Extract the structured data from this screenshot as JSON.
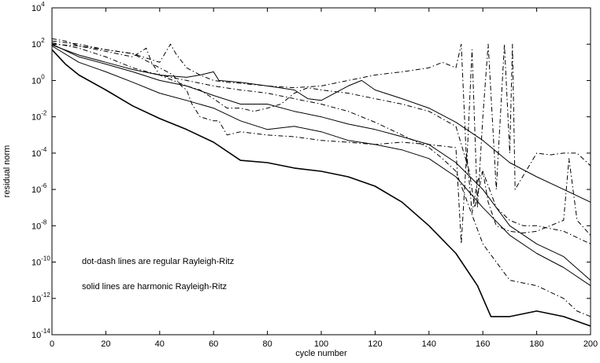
{
  "chart_data": {
    "type": "line",
    "title": "",
    "xlabel": "cycle number",
    "ylabel": "residual norm",
    "xlim": [
      0,
      200
    ],
    "ylim": [
      1e-14,
      10000.0
    ],
    "yscale": "log",
    "grid": false,
    "x_ticks": [
      0,
      20,
      40,
      60,
      80,
      100,
      120,
      140,
      160,
      180,
      200
    ],
    "y_tick_exponents": [
      -14,
      -12,
      -10,
      -8,
      -6,
      -4,
      -2,
      0,
      2,
      4
    ],
    "y_tick_base": "10",
    "annotations": [
      "dot-dash lines are regular Rayleigh-Ritz",
      "solid lines are harmonic Rayleigh-Ritz"
    ],
    "series": [
      {
        "style": "solid",
        "width": 1.6,
        "points": [
          [
            0,
            50
          ],
          [
            5,
            8
          ],
          [
            10,
            2
          ],
          [
            20,
            0.3
          ],
          [
            30,
            0.04
          ],
          [
            40,
            0.008
          ],
          [
            50,
            0.002
          ],
          [
            60,
            0.0004
          ],
          [
            70,
            4e-05
          ],
          [
            80,
            3e-05
          ],
          [
            90,
            1.5e-05
          ],
          [
            100,
            1e-05
          ],
          [
            110,
            5e-06
          ],
          [
            120,
            1.5e-06
          ],
          [
            130,
            2e-07
          ],
          [
            140,
            1e-08
          ],
          [
            150,
            3e-10
          ],
          [
            158,
            5e-12
          ],
          [
            163,
            1e-13
          ],
          [
            170,
            1e-13
          ],
          [
            180,
            2e-13
          ],
          [
            190,
            1e-13
          ],
          [
            200,
            3e-14
          ]
        ]
      },
      {
        "style": "solid",
        "width": 1.0,
        "points": [
          [
            0,
            80
          ],
          [
            10,
            10
          ],
          [
            20,
            3
          ],
          [
            30,
            0.8
          ],
          [
            40,
            0.2
          ],
          [
            50,
            0.08
          ],
          [
            60,
            0.03
          ],
          [
            70,
            0.006
          ],
          [
            80,
            0.002
          ],
          [
            90,
            0.003
          ],
          [
            100,
            0.0015
          ],
          [
            110,
            0.0005
          ],
          [
            120,
            0.0003
          ],
          [
            130,
            0.00015
          ],
          [
            140,
            5e-05
          ],
          [
            150,
            5e-06
          ],
          [
            160,
            1e-07
          ],
          [
            170,
            3e-09
          ],
          [
            180,
            3e-10
          ],
          [
            190,
            5e-11
          ],
          [
            200,
            5e-12
          ]
        ]
      },
      {
        "style": "solid",
        "width": 1.0,
        "points": [
          [
            0,
            100
          ],
          [
            10,
            20
          ],
          [
            20,
            8
          ],
          [
            30,
            3
          ],
          [
            40,
            1
          ],
          [
            50,
            0.5
          ],
          [
            60,
            0.15
          ],
          [
            70,
            0.05
          ],
          [
            80,
            0.05
          ],
          [
            90,
            0.02
          ],
          [
            100,
            0.01
          ],
          [
            110,
            0.004
          ],
          [
            120,
            0.002
          ],
          [
            130,
            0.0008
          ],
          [
            140,
            0.0003
          ],
          [
            150,
            3e-05
          ],
          [
            160,
            1e-06
          ],
          [
            170,
            1e-08
          ],
          [
            180,
            1e-09
          ],
          [
            190,
            2e-10
          ],
          [
            200,
            1e-11
          ]
        ]
      },
      {
        "style": "solid",
        "width": 1.0,
        "points": [
          [
            0,
            90
          ],
          [
            10,
            25
          ],
          [
            20,
            10
          ],
          [
            30,
            4
          ],
          [
            40,
            2
          ],
          [
            50,
            1.5
          ],
          [
            55,
            2
          ],
          [
            60,
            3
          ],
          [
            62,
            1
          ],
          [
            70,
            0.8
          ],
          [
            80,
            0.5
          ],
          [
            90,
            0.3
          ],
          [
            95,
            0.1
          ],
          [
            100,
            0.08
          ],
          [
            110,
            0.5
          ],
          [
            115,
            1
          ],
          [
            120,
            0.3
          ],
          [
            130,
            0.1
          ],
          [
            140,
            0.03
          ],
          [
            150,
            0.005
          ],
          [
            160,
            0.0005
          ],
          [
            170,
            3e-05
          ],
          [
            180,
            5e-06
          ],
          [
            190,
            1e-06
          ],
          [
            200,
            2e-07
          ]
        ]
      },
      {
        "style": "dashdot",
        "width": 1.0,
        "points": [
          [
            0,
            200
          ],
          [
            5,
            150
          ],
          [
            10,
            80
          ],
          [
            20,
            40
          ],
          [
            30,
            20
          ],
          [
            35,
            60
          ],
          [
            37,
            10
          ],
          [
            40,
            2
          ],
          [
            45,
            1
          ],
          [
            50,
            0.5
          ],
          [
            55,
            0.3
          ],
          [
            60,
            0.1
          ],
          [
            65,
            0.03
          ],
          [
            70,
            0.03
          ],
          [
            75,
            0.02
          ],
          [
            80,
            0.03
          ],
          [
            85,
            0.05
          ],
          [
            90,
            0.2
          ],
          [
            95,
            0.4
          ],
          [
            100,
            0.3
          ],
          [
            110,
            0.2
          ],
          [
            120,
            0.1
          ],
          [
            130,
            0.05
          ],
          [
            140,
            0.02
          ],
          [
            150,
            0.003
          ],
          [
            155,
            1e-05
          ],
          [
            157,
            1e-07
          ],
          [
            160,
            1e-05
          ],
          [
            165,
            1e-07
          ],
          [
            170,
            2e-08
          ],
          [
            175,
            1e-08
          ],
          [
            180,
            1e-08
          ],
          [
            190,
            5e-09
          ],
          [
            200,
            1e-09
          ]
        ]
      },
      {
        "style": "dashdot",
        "width": 1.0,
        "points": [
          [
            0,
            150
          ],
          [
            10,
            100
          ],
          [
            20,
            50
          ],
          [
            30,
            30
          ],
          [
            40,
            5
          ],
          [
            45,
            2
          ],
          [
            48,
            0.5
          ],
          [
            50,
            0.3
          ],
          [
            52,
            0.05
          ],
          [
            55,
            0.01
          ],
          [
            60,
            0.006
          ],
          [
            62,
            0.006
          ],
          [
            65,
            0.001
          ],
          [
            70,
            0.0015
          ],
          [
            80,
            0.001
          ],
          [
            90,
            0.0008
          ],
          [
            100,
            0.0005
          ],
          [
            110,
            0.0004
          ],
          [
            120,
            0.0003
          ],
          [
            130,
            0.0004
          ],
          [
            140,
            0.0003
          ],
          [
            150,
            0.0002
          ],
          [
            152,
            1e-09
          ],
          [
            154,
            0.0001
          ],
          [
            156,
            5e-08
          ],
          [
            158,
            3e-06
          ],
          [
            160,
            1e-05
          ],
          [
            162,
            2e-07
          ],
          [
            165,
            1e-08
          ],
          [
            170,
            5e-09
          ],
          [
            175,
            4e-09
          ],
          [
            180,
            5e-09
          ],
          [
            190,
            2e-08
          ],
          [
            192,
            5e-05
          ],
          [
            195,
            2e-08
          ],
          [
            200,
            3e-09
          ]
        ]
      },
      {
        "style": "dashdot",
        "width": 1.0,
        "points": [
          [
            0,
            100
          ],
          [
            10,
            80
          ],
          [
            20,
            50
          ],
          [
            30,
            30
          ],
          [
            40,
            10
          ],
          [
            44,
            100
          ],
          [
            46,
            30
          ],
          [
            50,
            5
          ],
          [
            55,
            2
          ],
          [
            60,
            1
          ],
          [
            65,
            0.8
          ],
          [
            70,
            0.7
          ],
          [
            80,
            0.5
          ],
          [
            90,
            0.4
          ],
          [
            100,
            0.5
          ],
          [
            110,
            1
          ],
          [
            120,
            2
          ],
          [
            130,
            3
          ],
          [
            140,
            5
          ],
          [
            145,
            10
          ],
          [
            150,
            5
          ],
          [
            152,
            100
          ],
          [
            154,
            2e-05
          ],
          [
            156,
            50
          ],
          [
            158,
            1e-07
          ],
          [
            160,
            0.01
          ],
          [
            162,
            100
          ],
          [
            165,
            1e-06
          ],
          [
            168,
            100
          ],
          [
            170,
            0.0001
          ],
          [
            171,
            100
          ],
          [
            172,
            1e-06
          ],
          [
            180,
            0.0001
          ],
          [
            185,
            8e-05
          ],
          [
            190,
            0.0001
          ],
          [
            195,
            0.0001
          ],
          [
            200,
            2e-05
          ]
        ]
      },
      {
        "style": "dashdot",
        "width": 1.0,
        "points": [
          [
            0,
            120
          ],
          [
            10,
            60
          ],
          [
            20,
            20
          ],
          [
            30,
            5
          ],
          [
            40,
            2
          ],
          [
            50,
            1
          ],
          [
            60,
            0.5
          ],
          [
            70,
            0.3
          ],
          [
            80,
            0.2
          ],
          [
            90,
            0.1
          ],
          [
            100,
            0.05
          ],
          [
            110,
            0.02
          ],
          [
            120,
            0.005
          ],
          [
            130,
            0.001
          ],
          [
            140,
            0.0002
          ],
          [
            145,
            5e-05
          ],
          [
            150,
            1e-05
          ],
          [
            155,
            1e-07
          ],
          [
            160,
            1e-09
          ],
          [
            165,
            1e-10
          ],
          [
            170,
            1e-11
          ],
          [
            180,
            5e-12
          ],
          [
            190,
            1e-12
          ],
          [
            195,
            2e-13
          ],
          [
            200,
            1e-13
          ]
        ]
      }
    ]
  }
}
